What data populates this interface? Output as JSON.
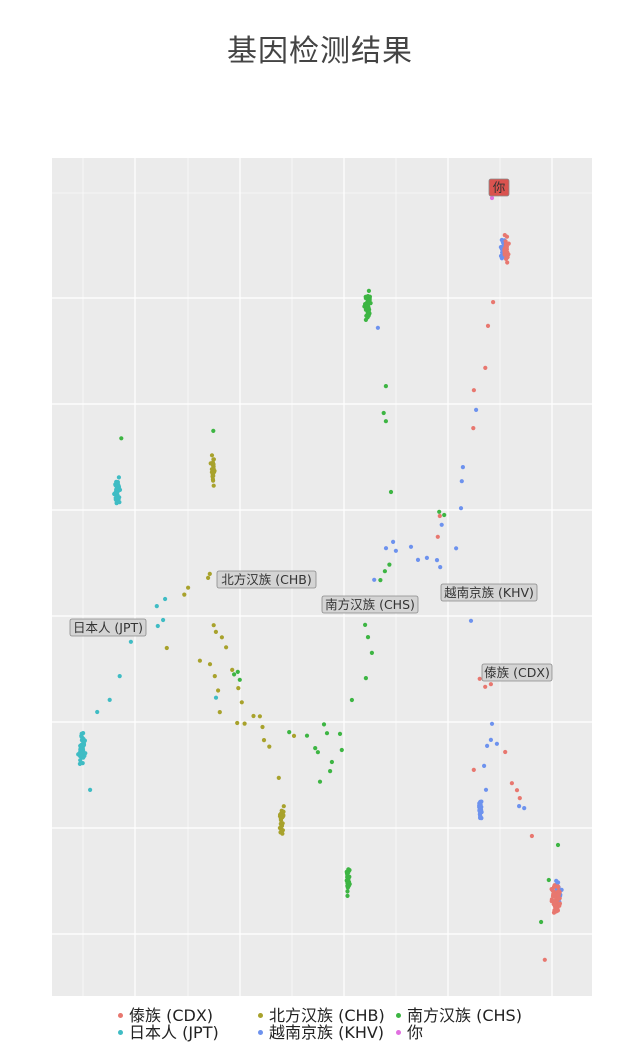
{
  "chart_data": {
    "type": "scatter",
    "title": "基因检测结果",
    "xlabel": "",
    "ylabel": "",
    "grid": true,
    "legend_position": "bottom",
    "series": [
      {
        "name": "傣族 (CDX)",
        "color": "#e8776f",
        "points": []
      },
      {
        "name": "北方汉族 (CHB)",
        "color": "#a8a22c",
        "points": []
      },
      {
        "name": "南方汉族 (CHS)",
        "color": "#3db543",
        "points": []
      },
      {
        "name": "日本人 (JPT)",
        "color": "#3fbcc4",
        "points": []
      },
      {
        "name": "越南京族 (KHV)",
        "color": "#6d92ee",
        "points": []
      },
      {
        "name": "你",
        "color": "#e16fe0",
        "points": []
      }
    ],
    "annotations": [
      {
        "text": "你",
        "highlight": true
      },
      {
        "text": "北方汉族 (CHB)"
      },
      {
        "text": "南方汉族 (CHS)"
      },
      {
        "text": "越南京族 (KHV)"
      },
      {
        "text": "日本人 (JPT)"
      },
      {
        "text": "傣族 (CDX)"
      }
    ]
  },
  "colors": {
    "panel_bg": "#ebebeb",
    "grid": "#ffffff",
    "label_bg": "#d4d4d4",
    "label_border": "#8a8a8a",
    "you_label_bg": "#d9534f"
  }
}
